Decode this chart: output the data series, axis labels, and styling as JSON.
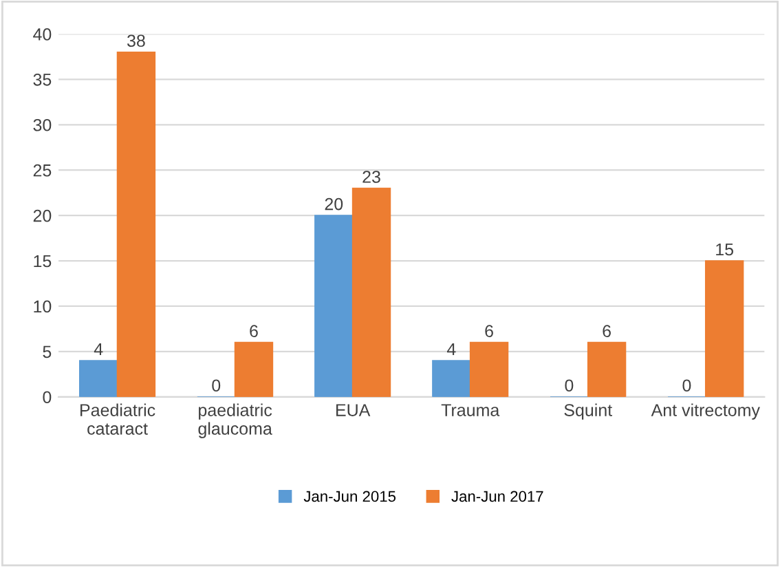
{
  "chart_data": {
    "type": "bar",
    "categories": [
      "Paediatric\ncataract",
      "paediatric\nglaucoma",
      "EUA",
      "Trauma",
      "Squint",
      "Ant vitrectomy"
    ],
    "series": [
      {
        "name": "Jan-Jun 2015",
        "color": "#5b9bd5",
        "values": [
          4,
          0,
          20,
          4,
          0,
          0
        ]
      },
      {
        "name": "Jan-Jun 2017",
        "color": "#ed7d31",
        "values": [
          38,
          6,
          23,
          6,
          6,
          15
        ]
      }
    ],
    "ylim": [
      0,
      40
    ],
    "yticks": [
      0,
      5,
      10,
      15,
      20,
      25,
      30,
      35,
      40
    ],
    "grid": "y",
    "legend": "bottom",
    "data_labels": true
  }
}
